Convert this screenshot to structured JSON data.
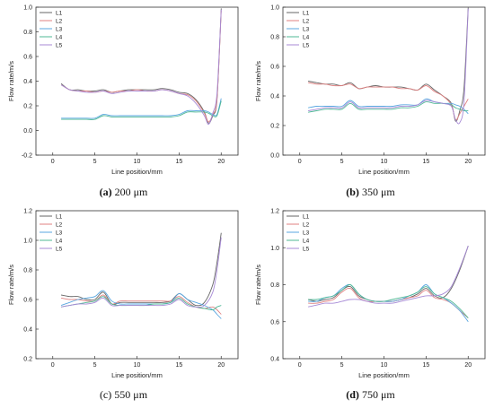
{
  "figure": {
    "panels": [
      {
        "caption_letter": "(a)",
        "caption_bold": true,
        "caption_value": "200 μm"
      },
      {
        "caption_letter": "(b)",
        "caption_bold": true,
        "caption_value": "350 μm"
      },
      {
        "caption_letter": "(c)",
        "caption_bold": false,
        "caption_value": "550 μm"
      },
      {
        "caption_letter": "(d)",
        "caption_bold": true,
        "caption_value": "750 μm"
      }
    ]
  },
  "chart_data": [
    {
      "type": "line",
      "xlabel": "Line position/mm",
      "ylabel": "Flow rate/m/s",
      "xlim": [
        -2,
        22
      ],
      "ylim": [
        -0.2,
        1.0
      ],
      "xticks": [
        0,
        5,
        10,
        15,
        20
      ],
      "yticks": [
        -0.2,
        0.0,
        0.2,
        0.4,
        0.6,
        0.8,
        1.0
      ],
      "ytick_labels": [
        "-0.2",
        "0.0",
        "0.2",
        "0.4",
        "0.6",
        "0.8",
        "1.0"
      ],
      "legend_placement": "top-left",
      "x": [
        1,
        2,
        3,
        4,
        5,
        6,
        7,
        8,
        9,
        10,
        11,
        12,
        13,
        14,
        15,
        16,
        17,
        18,
        18.5,
        19,
        19.5,
        20
      ],
      "series": [
        {
          "name": "L1",
          "color": "#666666",
          "values": [
            0.38,
            0.33,
            0.33,
            0.32,
            0.32,
            0.33,
            0.31,
            0.32,
            0.33,
            0.33,
            0.33,
            0.33,
            0.34,
            0.33,
            0.31,
            0.3,
            0.25,
            0.15,
            0.06,
            0.12,
            0.25,
            0.99
          ]
        },
        {
          "name": "L2",
          "color": "#e08080",
          "values": [
            0.37,
            0.33,
            0.32,
            0.32,
            0.31,
            0.32,
            0.31,
            0.32,
            0.32,
            0.33,
            0.32,
            0.32,
            0.33,
            0.32,
            0.3,
            0.29,
            0.24,
            0.14,
            0.07,
            0.13,
            0.26,
            0.97
          ]
        },
        {
          "name": "L3",
          "color": "#5aa7e0",
          "values": [
            0.1,
            0.1,
            0.1,
            0.1,
            0.1,
            0.13,
            0.12,
            0.12,
            0.12,
            0.12,
            0.12,
            0.12,
            0.12,
            0.12,
            0.13,
            0.16,
            0.16,
            0.16,
            0.15,
            0.13,
            0.13,
            0.26
          ]
        },
        {
          "name": "L4",
          "color": "#4fb896",
          "values": [
            0.09,
            0.09,
            0.09,
            0.09,
            0.09,
            0.12,
            0.11,
            0.11,
            0.11,
            0.11,
            0.11,
            0.11,
            0.11,
            0.11,
            0.12,
            0.15,
            0.15,
            0.15,
            0.14,
            0.12,
            0.12,
            0.24
          ]
        },
        {
          "name": "L5",
          "color": "#a78ad6",
          "values": [
            0.37,
            0.33,
            0.32,
            0.31,
            0.31,
            0.32,
            0.3,
            0.31,
            0.32,
            0.32,
            0.32,
            0.32,
            0.33,
            0.32,
            0.3,
            0.28,
            0.22,
            0.12,
            0.05,
            0.14,
            0.3,
            0.98
          ]
        }
      ]
    },
    {
      "type": "line",
      "xlabel": "Line position/mm",
      "ylabel": "Flow rate/m/s",
      "xlim": [
        -2,
        22
      ],
      "ylim": [
        0.0,
        1.0
      ],
      "xticks": [
        0,
        5,
        10,
        15,
        20
      ],
      "yticks": [
        0.0,
        0.2,
        0.4,
        0.6,
        0.8,
        1.0
      ],
      "ytick_labels": [
        "0.0",
        "0.2",
        "0.4",
        "0.6",
        "0.8",
        "1.0"
      ],
      "legend_placement": "top-left",
      "x": [
        1,
        2,
        3,
        4,
        5,
        6,
        7,
        8,
        9,
        10,
        11,
        12,
        13,
        14,
        15,
        16,
        17,
        18,
        18.5,
        19,
        19.5,
        20
      ],
      "series": [
        {
          "name": "L1",
          "color": "#666666",
          "values": [
            0.5,
            0.49,
            0.48,
            0.48,
            0.47,
            0.49,
            0.45,
            0.46,
            0.47,
            0.46,
            0.46,
            0.46,
            0.45,
            0.44,
            0.48,
            0.44,
            0.4,
            0.35,
            0.23,
            0.3,
            0.45,
            1.0
          ]
        },
        {
          "name": "L2",
          "color": "#e08080",
          "values": [
            0.49,
            0.48,
            0.48,
            0.47,
            0.47,
            0.48,
            0.45,
            0.46,
            0.46,
            0.46,
            0.46,
            0.45,
            0.45,
            0.44,
            0.47,
            0.43,
            0.4,
            0.34,
            0.24,
            0.28,
            0.33,
            0.38
          ]
        },
        {
          "name": "L3",
          "color": "#5aa7e0",
          "values": [
            0.32,
            0.33,
            0.33,
            0.33,
            0.33,
            0.37,
            0.33,
            0.33,
            0.33,
            0.33,
            0.33,
            0.34,
            0.34,
            0.34,
            0.38,
            0.36,
            0.35,
            0.35,
            0.34,
            0.33,
            0.31,
            0.28
          ]
        },
        {
          "name": "L4",
          "color": "#4fb896",
          "values": [
            0.29,
            0.3,
            0.31,
            0.31,
            0.31,
            0.35,
            0.31,
            0.31,
            0.31,
            0.31,
            0.31,
            0.32,
            0.32,
            0.33,
            0.36,
            0.35,
            0.35,
            0.34,
            0.32,
            0.31,
            0.3,
            0.3
          ]
        },
        {
          "name": "L5",
          "color": "#a78ad6",
          "values": [
            0.3,
            0.31,
            0.32,
            0.32,
            0.32,
            0.36,
            0.32,
            0.32,
            0.32,
            0.32,
            0.32,
            0.33,
            0.33,
            0.34,
            0.37,
            0.36,
            0.35,
            0.33,
            0.24,
            0.22,
            0.36,
            0.99
          ]
        }
      ]
    },
    {
      "type": "line",
      "xlabel": "Line position/mm",
      "ylabel": "Flow rate/m/s",
      "xlim": [
        -2,
        22
      ],
      "ylim": [
        0.2,
        1.2
      ],
      "xticks": [
        0,
        5,
        10,
        15,
        20
      ],
      "yticks": [
        0.2,
        0.4,
        0.6,
        0.8,
        1.0,
        1.2
      ],
      "ytick_labels": [
        "0.2",
        "0.4",
        "0.6",
        "0.8",
        "1.0",
        "1.2"
      ],
      "legend_placement": "top-left",
      "x": [
        1,
        2,
        3,
        4,
        5,
        6,
        7,
        8,
        9,
        10,
        11,
        12,
        13,
        14,
        15,
        16,
        17,
        18,
        19,
        19.5,
        20
      ],
      "series": [
        {
          "name": "L1",
          "color": "#666666",
          "values": [
            0.63,
            0.62,
            0.62,
            0.6,
            0.6,
            0.65,
            0.57,
            0.58,
            0.58,
            0.58,
            0.58,
            0.58,
            0.58,
            0.59,
            0.64,
            0.6,
            0.56,
            0.58,
            0.7,
            0.85,
            1.05
          ]
        },
        {
          "name": "L2",
          "color": "#e08080",
          "values": [
            0.61,
            0.6,
            0.6,
            0.59,
            0.59,
            0.63,
            0.57,
            0.59,
            0.59,
            0.59,
            0.59,
            0.59,
            0.59,
            0.59,
            0.62,
            0.58,
            0.55,
            0.54,
            0.55,
            0.53,
            0.5
          ]
        },
        {
          "name": "L3",
          "color": "#5aa7e0",
          "values": [
            0.56,
            0.58,
            0.6,
            0.61,
            0.62,
            0.66,
            0.59,
            0.57,
            0.57,
            0.57,
            0.57,
            0.57,
            0.57,
            0.58,
            0.64,
            0.6,
            0.58,
            0.56,
            0.53,
            0.5,
            0.47
          ]
        },
        {
          "name": "L4",
          "color": "#4fb896",
          "values": [
            0.55,
            0.56,
            0.57,
            0.58,
            0.59,
            0.62,
            0.57,
            0.56,
            0.56,
            0.56,
            0.56,
            0.57,
            0.57,
            0.58,
            0.61,
            0.57,
            0.55,
            0.54,
            0.53,
            0.55,
            0.56
          ]
        },
        {
          "name": "L5",
          "color": "#a78ad6",
          "values": [
            0.55,
            0.56,
            0.57,
            0.57,
            0.58,
            0.61,
            0.56,
            0.56,
            0.56,
            0.56,
            0.56,
            0.56,
            0.56,
            0.57,
            0.6,
            0.56,
            0.55,
            0.56,
            0.65,
            0.8,
            1.02
          ]
        }
      ]
    },
    {
      "type": "line",
      "xlabel": "Line position/mm",
      "ylabel": "Flow rate/m/s",
      "xlim": [
        -2,
        22
      ],
      "ylim": [
        0.4,
        1.2
      ],
      "xticks": [
        0,
        5,
        10,
        15,
        20
      ],
      "yticks": [
        0.4,
        0.6,
        0.8,
        1.0,
        1.2
      ],
      "ytick_labels": [
        "0.4",
        "0.6",
        "0.8",
        "1.0",
        "1.2"
      ],
      "legend_placement": "top-left",
      "x": [
        1,
        2,
        3,
        4,
        5,
        6,
        7,
        8,
        9,
        10,
        11,
        12,
        13,
        14,
        15,
        16,
        17,
        18,
        19,
        20
      ],
      "series": [
        {
          "name": "L1",
          "color": "#666666",
          "values": [
            0.72,
            0.71,
            0.72,
            0.73,
            0.77,
            0.79,
            0.74,
            0.72,
            0.71,
            0.71,
            0.71,
            0.72,
            0.73,
            0.75,
            0.78,
            0.74,
            0.73,
            0.78,
            0.88,
            1.01
          ]
        },
        {
          "name": "L2",
          "color": "#e08080",
          "values": [
            0.7,
            0.7,
            0.71,
            0.72,
            0.76,
            0.78,
            0.73,
            0.71,
            0.71,
            0.71,
            0.71,
            0.72,
            0.73,
            0.74,
            0.77,
            0.73,
            0.72,
            0.7,
            0.66,
            0.62
          ]
        },
        {
          "name": "L3",
          "color": "#5aa7e0",
          "values": [
            0.71,
            0.71,
            0.73,
            0.74,
            0.78,
            0.8,
            0.75,
            0.72,
            0.71,
            0.71,
            0.71,
            0.72,
            0.74,
            0.76,
            0.8,
            0.75,
            0.73,
            0.7,
            0.66,
            0.6
          ]
        },
        {
          "name": "L4",
          "color": "#4fb896",
          "values": [
            0.72,
            0.72,
            0.73,
            0.74,
            0.77,
            0.8,
            0.75,
            0.72,
            0.71,
            0.71,
            0.72,
            0.73,
            0.74,
            0.76,
            0.79,
            0.75,
            0.73,
            0.71,
            0.67,
            0.62
          ]
        },
        {
          "name": "L5",
          "color": "#a78ad6",
          "values": [
            0.68,
            0.69,
            0.7,
            0.7,
            0.71,
            0.72,
            0.72,
            0.71,
            0.7,
            0.7,
            0.7,
            0.71,
            0.72,
            0.73,
            0.74,
            0.74,
            0.75,
            0.79,
            0.89,
            1.01
          ]
        }
      ]
    }
  ]
}
